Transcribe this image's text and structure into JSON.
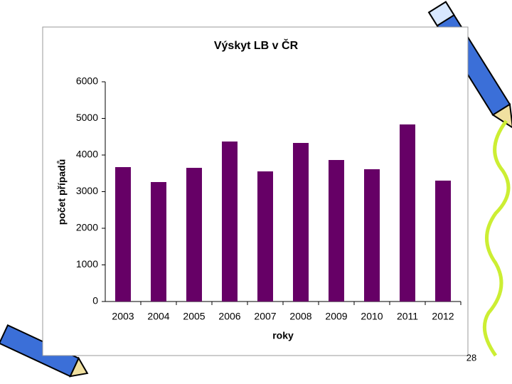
{
  "chart_data": {
    "type": "bar",
    "title": "Výskyt LB v ČR",
    "x_label": "roky",
    "y_label": "počet případů",
    "categories": [
      "2003",
      "2004",
      "2005",
      "2006",
      "2007",
      "2008",
      "2009",
      "2010",
      "2011",
      "2012"
    ],
    "values": [
      3670,
      3262,
      3650,
      4369,
      3553,
      4330,
      3864,
      3612,
      4835,
      3301
    ],
    "color": "#660066",
    "ylim": [
      0,
      6000
    ],
    "yticks": [
      0,
      1000,
      2000,
      3000,
      4000,
      5000,
      6000
    ],
    "grid": false
  },
  "page_number": "28"
}
